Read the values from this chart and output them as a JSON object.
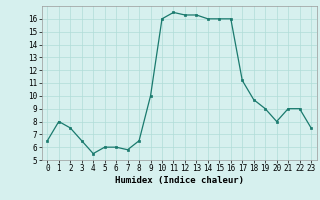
{
  "x": [
    0,
    1,
    2,
    3,
    4,
    5,
    6,
    7,
    8,
    9,
    10,
    11,
    12,
    13,
    14,
    15,
    16,
    17,
    18,
    19,
    20,
    21,
    22,
    23
  ],
  "y": [
    6.5,
    8.0,
    7.5,
    6.5,
    5.5,
    6.0,
    6.0,
    5.8,
    6.5,
    10.0,
    16.0,
    16.5,
    16.3,
    16.3,
    16.0,
    16.0,
    16.0,
    11.2,
    9.7,
    9.0,
    8.0,
    9.0,
    9.0,
    7.5
  ],
  "xlabel": "Humidex (Indice chaleur)",
  "ylim": [
    5,
    17
  ],
  "xlim_min": -0.5,
  "xlim_max": 23.5,
  "yticks": [
    5,
    6,
    7,
    8,
    9,
    10,
    11,
    12,
    13,
    14,
    15,
    16
  ],
  "xticks": [
    0,
    1,
    2,
    3,
    4,
    5,
    6,
    7,
    8,
    9,
    10,
    11,
    12,
    13,
    14,
    15,
    16,
    17,
    18,
    19,
    20,
    21,
    22,
    23
  ],
  "line_color": "#1a7a6e",
  "marker": "s",
  "marker_size": 1.8,
  "bg_color": "#d6f0ee",
  "grid_color": "#b0ddd8",
  "tick_fontsize": 5.5,
  "xlabel_fontsize": 6.5,
  "linewidth": 0.9
}
